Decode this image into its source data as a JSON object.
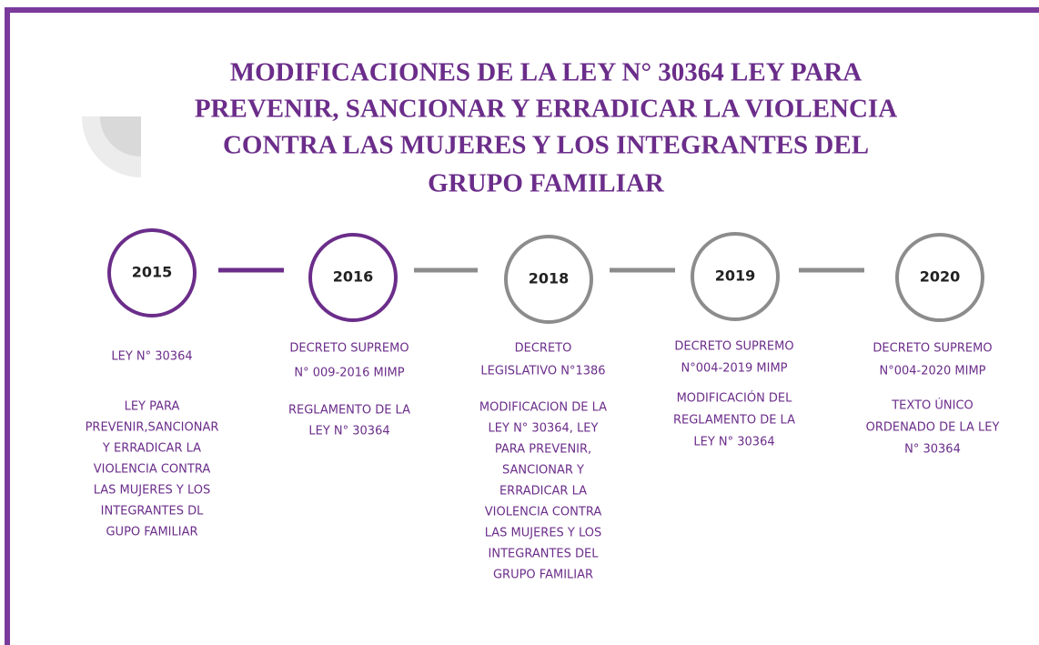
{
  "title_lines": [
    "MODIFICACIONES DE LA LEY N° 30364 LEY PARA",
    "PREVENIR, SANCIONAR Y ERRADICAR LA VIOLENCIA",
    "CONTRA LAS MUJERES Y LOS INTEGRANTES DEL",
    "GRUPO FAMILIAR"
  ],
  "timeline": [
    {
      "year": "2015",
      "heading": [
        "LEY N° 30364"
      ],
      "description": [
        "LEY PARA",
        "PREVENIR,SANCIONAR",
        "Y ERRADICAR LA",
        "VIOLENCIA CONTRA",
        "LAS MUJERES Y LOS",
        "INTEGRANTES DL",
        "GUPO FAMILIAR"
      ]
    },
    {
      "year": "2016",
      "heading": [
        "DECRETO SUPREMO",
        "N° 009-2016 MIMP"
      ],
      "description": [
        "REGLAMENTO DE LA",
        "LEY N° 30364"
      ]
    },
    {
      "year": "2018",
      "heading": [
        "DECRETO",
        "LEGISLATIVO N°1386"
      ],
      "description": [
        "MODIFICACION DE LA",
        "LEY N° 30364, LEY",
        "PARA PREVENIR,",
        "SANCIONAR Y",
        "ERRADICAR LA",
        "VIOLENCIA CONTRA",
        "LAS MUJERES Y LOS",
        "INTEGRANTES DEL",
        "GRUPO FAMILIAR"
      ]
    },
    {
      "year": "2019",
      "heading": [
        "DECRETO SUPREMO",
        "N°004-2019 MIMP"
      ],
      "description": [
        "MODIFICACIÓN DEL",
        "REGLAMENTO DE LA",
        "LEY N° 30364"
      ]
    },
    {
      "year": "2020",
      "heading": [
        "DECRETO SUPREMO",
        "N°004-2020 MIMP"
      ],
      "description": [
        "TEXTO ÚNICO",
        "ORDENADO DE LA LEY",
        "N° 30364"
      ]
    }
  ]
}
